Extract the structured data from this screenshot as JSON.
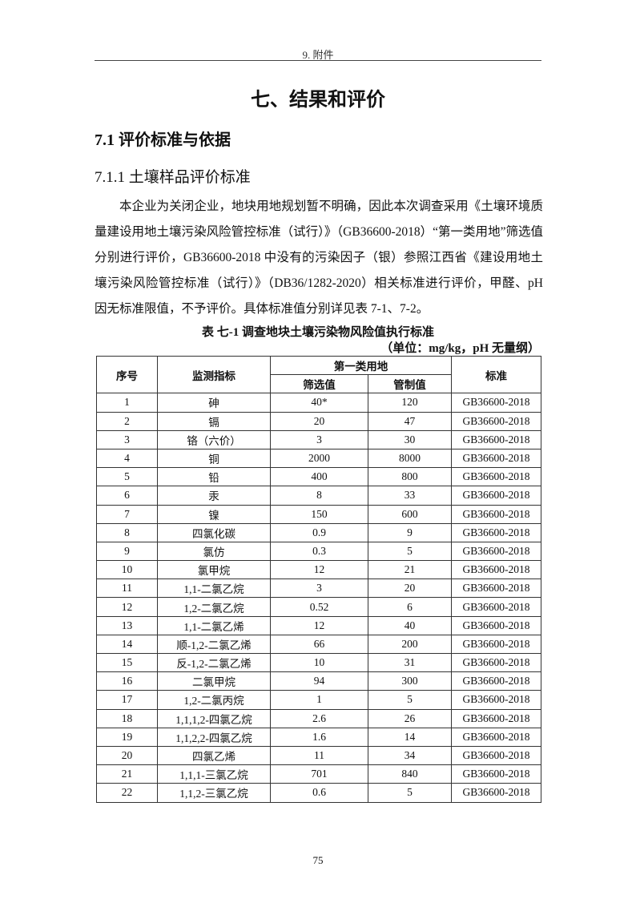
{
  "header": {
    "running_title": "9. 附件"
  },
  "title": "七、结果和评价",
  "section": {
    "number_title": "7.1  评价标准与依据"
  },
  "subsection": {
    "number_title": "7.1.1  土壤样品评价标准"
  },
  "paragraph": "本企业为关闭企业，地块用地规划暂不明确，因此本次调查采用《土壤环境质量建设用地土壤污染风险管控标准（试行）》（GB36600-2018）“第一类用地”筛选值分别进行评价，GB36600-2018 中没有的污染因子（银）参照江西省《建设用地土壤污染风险管控标准（试行）》（DB36/1282-2020）相关标准进行评价，甲醛、pH 因无标准限值，不予评价。具体标准值分别详见表 7-1、7-2。",
  "table": {
    "caption": "表  七-1  调查地块土壤污染物风险值执行标准",
    "unit": "（单位：mg/kg，pH 无量纲）",
    "headers": {
      "no": "序号",
      "indicator": "监测指标",
      "group": "第一类用地",
      "screening": "筛选值",
      "control": "管制值",
      "standard": "标准"
    },
    "rows": [
      [
        "1",
        "砷",
        "40*",
        "120",
        "GB36600-2018"
      ],
      [
        "2",
        "镉",
        "20",
        "47",
        "GB36600-2018"
      ],
      [
        "3",
        "铬（六价）",
        "3",
        "30",
        "GB36600-2018"
      ],
      [
        "4",
        "铜",
        "2000",
        "8000",
        "GB36600-2018"
      ],
      [
        "5",
        "铅",
        "400",
        "800",
        "GB36600-2018"
      ],
      [
        "6",
        "汞",
        "8",
        "33",
        "GB36600-2018"
      ],
      [
        "7",
        "镍",
        "150",
        "600",
        "GB36600-2018"
      ],
      [
        "8",
        "四氯化碳",
        "0.9",
        "9",
        "GB36600-2018"
      ],
      [
        "9",
        "氯仿",
        "0.3",
        "5",
        "GB36600-2018"
      ],
      [
        "10",
        "氯甲烷",
        "12",
        "21",
        "GB36600-2018"
      ],
      [
        "11",
        "1,1-二氯乙烷",
        "3",
        "20",
        "GB36600-2018"
      ],
      [
        "12",
        "1,2-二氯乙烷",
        "0.52",
        "6",
        "GB36600-2018"
      ],
      [
        "13",
        "1,1-二氯乙烯",
        "12",
        "40",
        "GB36600-2018"
      ],
      [
        "14",
        "顺-1,2-二氯乙烯",
        "66",
        "200",
        "GB36600-2018"
      ],
      [
        "15",
        "反-1,2-二氯乙烯",
        "10",
        "31",
        "GB36600-2018"
      ],
      [
        "16",
        "二氯甲烷",
        "94",
        "300",
        "GB36600-2018"
      ],
      [
        "17",
        "1,2-二氯丙烷",
        "1",
        "5",
        "GB36600-2018"
      ],
      [
        "18",
        "1,1,1,2-四氯乙烷",
        "2.6",
        "26",
        "GB36600-2018"
      ],
      [
        "19",
        "1,1,2,2-四氯乙烷",
        "1.6",
        "14",
        "GB36600-2018"
      ],
      [
        "20",
        "四氯乙烯",
        "11",
        "34",
        "GB36600-2018"
      ],
      [
        "21",
        "1,1,1-三氯乙烷",
        "701",
        "840",
        "GB36600-2018"
      ],
      [
        "22",
        "1,1,2-三氯乙烷",
        "0.6",
        "5",
        "GB36600-2018"
      ]
    ]
  },
  "footer": {
    "page_number": "75"
  }
}
